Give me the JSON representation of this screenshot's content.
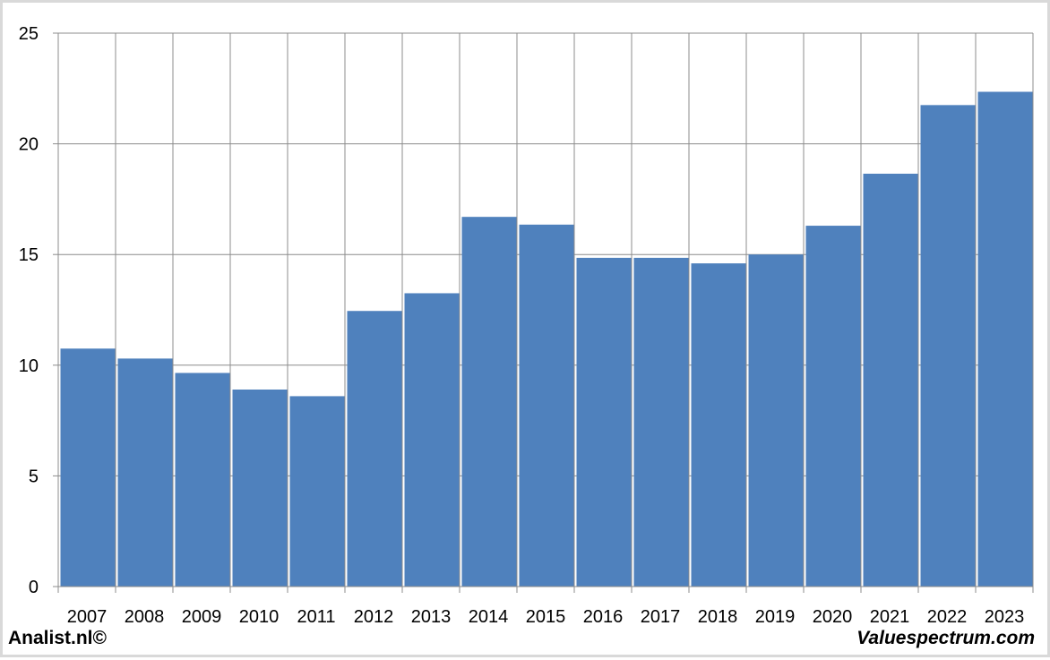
{
  "chart_data": {
    "type": "bar",
    "categories": [
      "2007",
      "2008",
      "2009",
      "2010",
      "2011",
      "2012",
      "2013",
      "2014",
      "2015",
      "2016",
      "2017",
      "2018",
      "2019",
      "2020",
      "2021",
      "2022",
      "2023"
    ],
    "values": [
      10.75,
      10.3,
      9.65,
      8.9,
      8.6,
      12.45,
      13.25,
      16.7,
      16.35,
      14.85,
      14.85,
      14.6,
      15.0,
      16.3,
      18.65,
      21.75,
      22.35
    ],
    "ylim": [
      0,
      25
    ],
    "yticks": [
      "0",
      "5",
      "10",
      "15",
      "20",
      "25"
    ],
    "grid": true,
    "bar_color": "#4f81bd",
    "title": "",
    "xlabel": "",
    "ylabel": ""
  },
  "footer": {
    "left": "Analist.nl©",
    "right": "Valuespectrum.com"
  }
}
